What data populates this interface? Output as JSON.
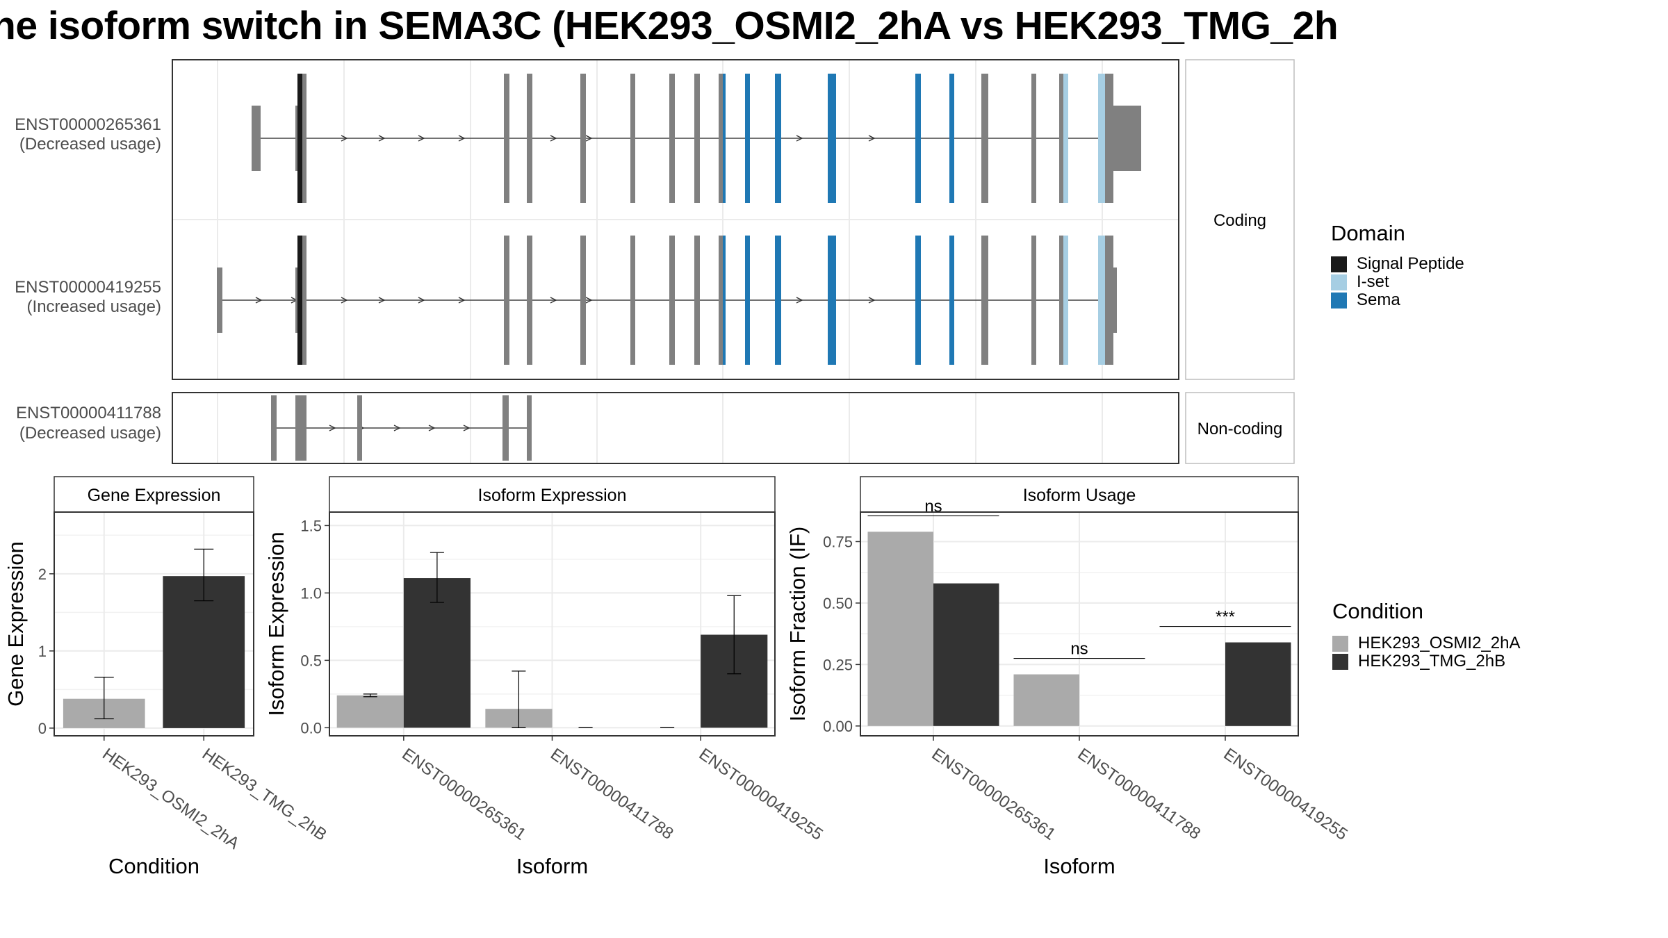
{
  "title": "he isoform switch in SEMA3C (HEK293_OSMI2_2hA vs HEK293_TMG_2h",
  "structure": {
    "coding_strip": "Coding",
    "noncoding_strip": "Non-coding",
    "transcripts": [
      {
        "id": "ENST00000265361",
        "note": "(Decreased usage)",
        "group": "coding"
      },
      {
        "id": "ENST00000419255",
        "note": "(Increased usage)",
        "group": "coding"
      },
      {
        "id": "ENST00000411788",
        "note": "(Decreased usage)",
        "group": "noncoding"
      }
    ]
  },
  "domain_legend": {
    "title": "Domain",
    "items": [
      {
        "label": "Signal Peptide",
        "color": "#1a1a1a"
      },
      {
        "label": "I-set",
        "color": "#a6cee3"
      },
      {
        "label": "Sema",
        "color": "#1f78b4"
      }
    ]
  },
  "condition_legend": {
    "title": "Condition",
    "items": [
      {
        "label": "HEK293_OSMI2_2hA",
        "color": "#aaaaaa"
      },
      {
        "label": "HEK293_TMG_2hB",
        "color": "#333333"
      }
    ]
  },
  "chart_data": [
    {
      "type": "bar",
      "title": "Gene Expression",
      "xlabel": "Condition",
      "ylabel": "Gene Expression",
      "categories": [
        "HEK293_OSMI2_2hA",
        "HEK293_TMG_2hB"
      ],
      "values": [
        0.38,
        1.97
      ],
      "errors": [
        [
          0.12,
          0.66
        ],
        [
          1.65,
          2.32
        ]
      ],
      "ylim": [
        -0.1,
        2.8
      ],
      "yticks": [
        "0",
        "1",
        "2"
      ],
      "colors": [
        "#aaaaaa",
        "#333333"
      ]
    },
    {
      "type": "bar",
      "title": "Isoform Expression",
      "xlabel": "Isoform",
      "ylabel": "Isoform Expression",
      "categories": [
        "ENST00000265361",
        "ENST00000411788",
        "ENST00000419255"
      ],
      "series": [
        {
          "name": "HEK293_OSMI2_2hA",
          "values": [
            0.24,
            0.14,
            0.0
          ],
          "errors": [
            [
              0.23,
              0.25
            ],
            [
              0.0,
              0.42
            ],
            [
              0.0,
              0.0
            ]
          ]
        },
        {
          "name": "HEK293_TMG_2hB",
          "values": [
            1.11,
            0.0,
            0.69
          ],
          "errors": [
            [
              0.93,
              1.3
            ],
            [
              0.0,
              0.0
            ],
            [
              0.4,
              0.98
            ]
          ]
        }
      ],
      "ylim": [
        -0.06,
        1.6
      ],
      "yticks": [
        "0.0",
        "0.5",
        "1.0",
        "1.5"
      ]
    },
    {
      "type": "bar",
      "title": "Isoform Usage",
      "xlabel": "Isoform",
      "ylabel": "Isoform Fraction (IF)",
      "categories": [
        "ENST00000265361",
        "ENST00000411788",
        "ENST00000419255"
      ],
      "series": [
        {
          "name": "HEK293_OSMI2_2hA",
          "values": [
            0.79,
            0.21,
            0.0
          ]
        },
        {
          "name": "HEK293_TMG_2hB",
          "values": [
            0.58,
            0.0,
            0.34
          ]
        }
      ],
      "significance": [
        "ns",
        "ns",
        "***"
      ],
      "ylim": [
        -0.04,
        0.87
      ],
      "yticks": [
        "0.00",
        "0.25",
        "0.50",
        "0.75"
      ]
    }
  ]
}
